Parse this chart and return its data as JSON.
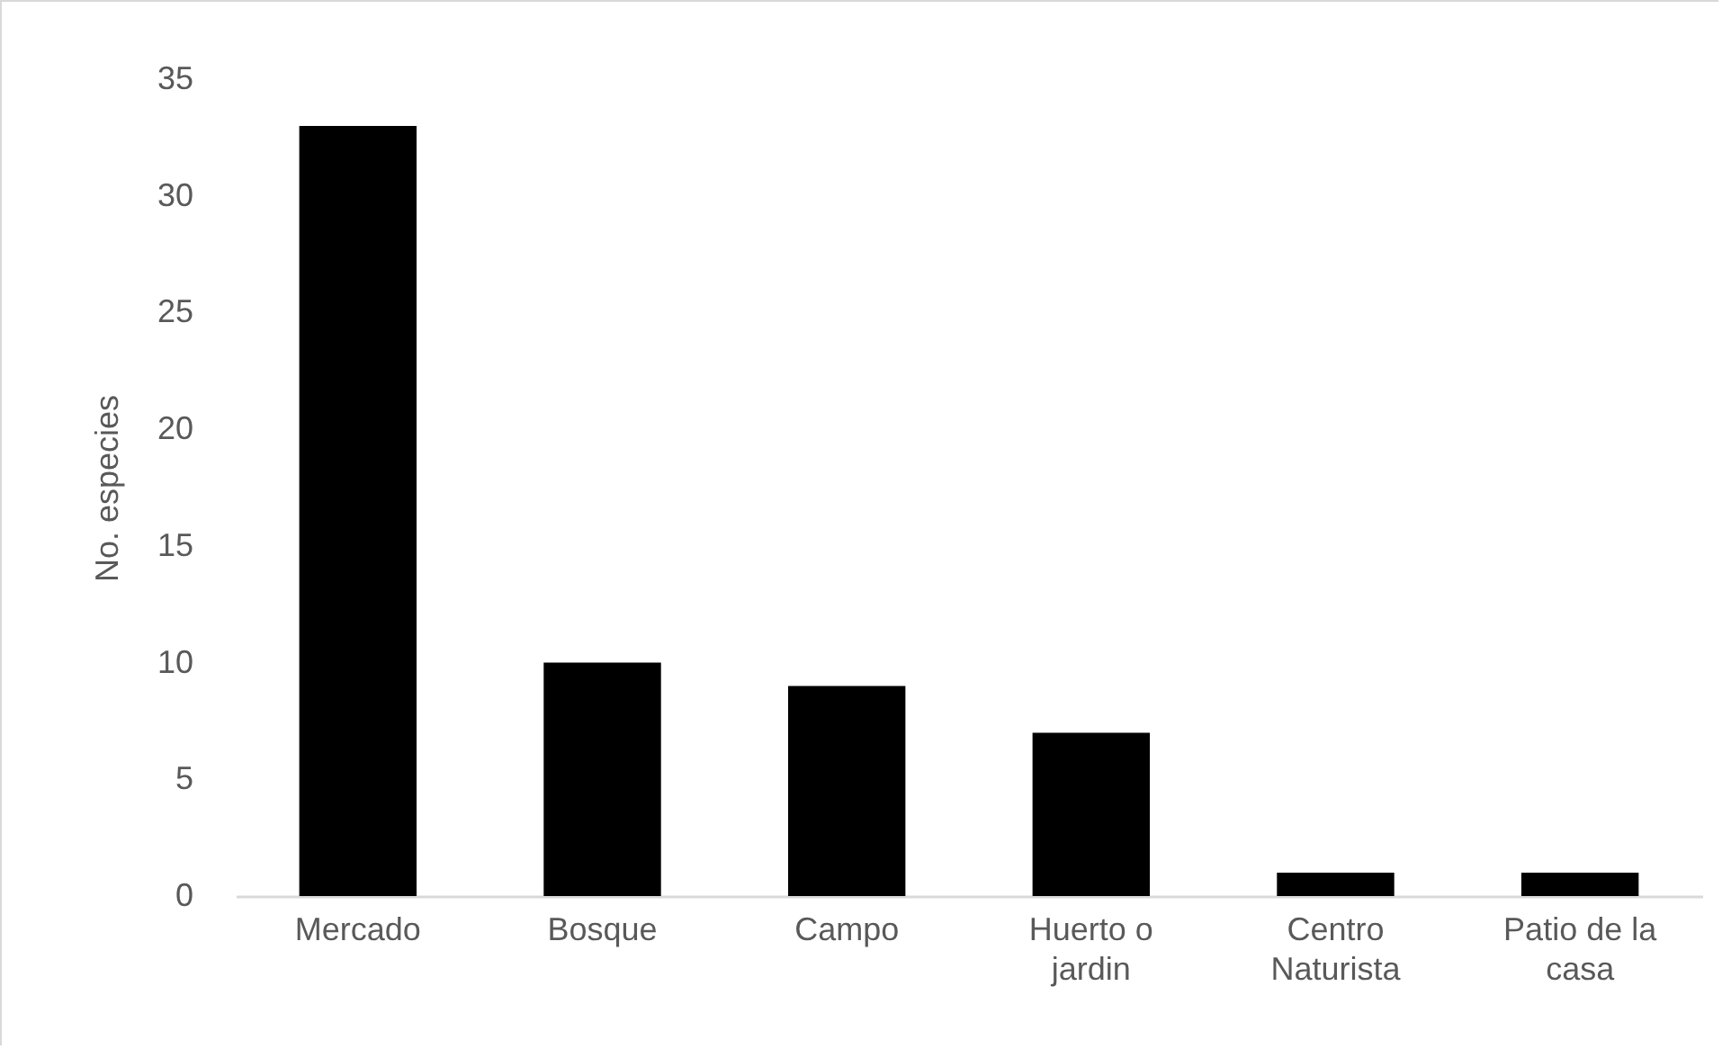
{
  "chart_data": {
    "type": "bar",
    "ylabel": "No. especies",
    "categories": [
      "Mercado",
      "Bosque",
      "Campo",
      "Huerto o jardin",
      "Centro Naturista",
      "Patio de la casa"
    ],
    "values": [
      33,
      10,
      9,
      7,
      1,
      1
    ],
    "color": "#000000",
    "ylim": [
      0,
      35
    ],
    "yticks": [
      0,
      5,
      10,
      15,
      20,
      25,
      30,
      35
    ],
    "grid": false
  }
}
